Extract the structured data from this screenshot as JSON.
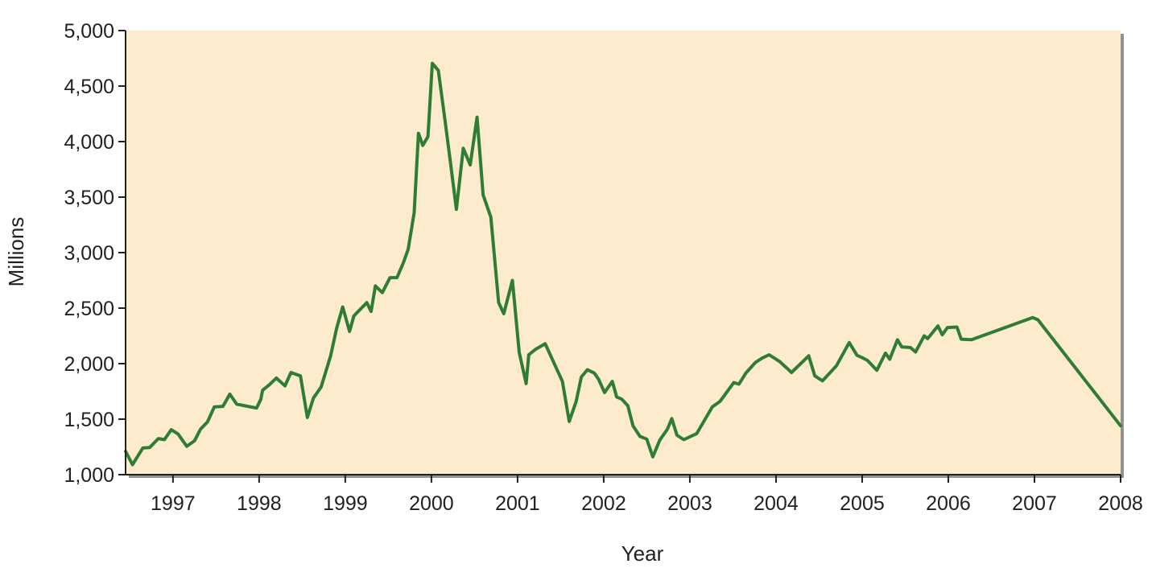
{
  "chart_data": {
    "type": "line",
    "xlabel": "Year",
    "ylabel": "Millions",
    "xlim": [
      1996.45,
      2008.0
    ],
    "ylim": [
      1000,
      5000
    ],
    "x_ticks": [
      1997,
      1998,
      1999,
      2000,
      2001,
      2002,
      2003,
      2004,
      2005,
      2006,
      2007,
      2008
    ],
    "x_tick_labels": [
      "1997",
      "1998",
      "1999",
      "2000",
      "2001",
      "2002",
      "2003",
      "2004",
      "2005",
      "2006",
      "2007",
      "2008"
    ],
    "y_ticks": [
      1000,
      1500,
      2000,
      2500,
      3000,
      3500,
      4000,
      4500,
      5000
    ],
    "y_tick_labels": [
      "1,000",
      "1,500",
      "2,000",
      "2,500",
      "3,000",
      "3,500",
      "4,000",
      "4,500",
      "5,000"
    ],
    "grid": false,
    "colors": {
      "plot_background": "#fcebcd",
      "line": "#2e7d32",
      "axis": "#231f20",
      "shadow": "#6d6e71"
    },
    "series": [
      {
        "values": [
          [
            1996.45,
            1210
          ],
          [
            1996.53,
            1090
          ],
          [
            1996.65,
            1240
          ],
          [
            1996.73,
            1245
          ],
          [
            1996.83,
            1325
          ],
          [
            1996.9,
            1315
          ],
          [
            1996.98,
            1405
          ],
          [
            1997.06,
            1365
          ],
          [
            1997.16,
            1255
          ],
          [
            1997.25,
            1305
          ],
          [
            1997.32,
            1410
          ],
          [
            1997.4,
            1475
          ],
          [
            1997.48,
            1610
          ],
          [
            1997.58,
            1615
          ],
          [
            1997.66,
            1725
          ],
          [
            1997.74,
            1635
          ],
          [
            1997.87,
            1615
          ],
          [
            1997.97,
            1600
          ],
          [
            1998.02,
            1680
          ],
          [
            1998.04,
            1760
          ],
          [
            1998.12,
            1810
          ],
          [
            1998.2,
            1870
          ],
          [
            1998.3,
            1800
          ],
          [
            1998.37,
            1920
          ],
          [
            1998.48,
            1890
          ],
          [
            1998.56,
            1515
          ],
          [
            1998.63,
            1690
          ],
          [
            1998.72,
            1790
          ],
          [
            1998.83,
            2070
          ],
          [
            1998.9,
            2320
          ],
          [
            1998.97,
            2510
          ],
          [
            1999.05,
            2290
          ],
          [
            1999.1,
            2430
          ],
          [
            1999.2,
            2510
          ],
          [
            1999.25,
            2550
          ],
          [
            1999.3,
            2470
          ],
          [
            1999.35,
            2700
          ],
          [
            1999.43,
            2640
          ],
          [
            1999.52,
            2775
          ],
          [
            1999.6,
            2775
          ],
          [
            1999.67,
            2900
          ],
          [
            1999.73,
            3030
          ],
          [
            1999.8,
            3360
          ],
          [
            1999.85,
            4075
          ],
          [
            1999.9,
            3965
          ],
          [
            1999.96,
            4045
          ],
          [
            2000.01,
            4705
          ],
          [
            2000.08,
            4640
          ],
          [
            2000.15,
            4240
          ],
          [
            2000.22,
            3820
          ],
          [
            2000.29,
            3390
          ],
          [
            2000.37,
            3940
          ],
          [
            2000.45,
            3790
          ],
          [
            2000.53,
            4220
          ],
          [
            2000.6,
            3520
          ],
          [
            2000.69,
            3320
          ],
          [
            2000.78,
            2550
          ],
          [
            2000.84,
            2450
          ],
          [
            2000.94,
            2750
          ],
          [
            2001.02,
            2100
          ],
          [
            2001.1,
            1820
          ],
          [
            2001.13,
            2080
          ],
          [
            2001.21,
            2130
          ],
          [
            2001.32,
            2180
          ],
          [
            2001.52,
            1840
          ],
          [
            2001.6,
            1480
          ],
          [
            2001.68,
            1660
          ],
          [
            2001.74,
            1880
          ],
          [
            2001.81,
            1945
          ],
          [
            2001.89,
            1915
          ],
          [
            2001.94,
            1860
          ],
          [
            2002.01,
            1740
          ],
          [
            2002.1,
            1840
          ],
          [
            2002.15,
            1700
          ],
          [
            2002.21,
            1680
          ],
          [
            2002.28,
            1620
          ],
          [
            2002.34,
            1440
          ],
          [
            2002.42,
            1345
          ],
          [
            2002.5,
            1320
          ],
          [
            2002.57,
            1160
          ],
          [
            2002.65,
            1310
          ],
          [
            2002.74,
            1410
          ],
          [
            2002.79,
            1505
          ],
          [
            2002.85,
            1355
          ],
          [
            2002.93,
            1315
          ],
          [
            2003.01,
            1345
          ],
          [
            2003.08,
            1370
          ],
          [
            2003.26,
            1610
          ],
          [
            2003.35,
            1660
          ],
          [
            2003.43,
            1745
          ],
          [
            2003.51,
            1830
          ],
          [
            2003.57,
            1815
          ],
          [
            2003.65,
            1915
          ],
          [
            2003.76,
            2010
          ],
          [
            2003.84,
            2050
          ],
          [
            2003.92,
            2080
          ],
          [
            2004.04,
            2020
          ],
          [
            2004.14,
            1950
          ],
          [
            2004.18,
            1920
          ],
          [
            2004.38,
            2070
          ],
          [
            2004.45,
            1890
          ],
          [
            2004.54,
            1845
          ],
          [
            2004.7,
            1980
          ],
          [
            2004.85,
            2190
          ],
          [
            2004.94,
            2075
          ],
          [
            2005.01,
            2050
          ],
          [
            2005.06,
            2030
          ],
          [
            2005.17,
            1940
          ],
          [
            2005.27,
            2095
          ],
          [
            2005.32,
            2040
          ],
          [
            2005.41,
            2215
          ],
          [
            2005.46,
            2150
          ],
          [
            2005.56,
            2145
          ],
          [
            2005.62,
            2105
          ],
          [
            2005.72,
            2250
          ],
          [
            2005.76,
            2225
          ],
          [
            2005.88,
            2340
          ],
          [
            2005.93,
            2260
          ],
          [
            2005.99,
            2325
          ],
          [
            2006.1,
            2330
          ],
          [
            2006.15,
            2220
          ],
          [
            2006.27,
            2215
          ],
          [
            2006.98,
            2415
          ],
          [
            2007.04,
            2395
          ],
          [
            2008.0,
            1440
          ]
        ]
      }
    ]
  }
}
